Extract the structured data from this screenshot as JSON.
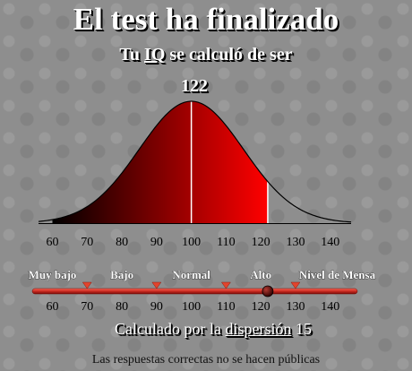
{
  "header": {
    "title": "El test ha finalizado",
    "subtitle_prefix": "Tu ",
    "subtitle_iq": "IQ",
    "subtitle_suffix": " se calculó de ser"
  },
  "result": {
    "score": "122",
    "iq_value": 122
  },
  "chart_data": {
    "type": "area",
    "distribution": "normal",
    "mean": 100,
    "sd": 15,
    "xlim": [
      56,
      146
    ],
    "x_ticks": [
      "60",
      "70",
      "80",
      "90",
      "100",
      "110",
      "120",
      "130",
      "140"
    ],
    "highlight_range": [
      60,
      122
    ],
    "marker_line_x": 100,
    "colors": {
      "fill_start": "#000000",
      "fill_end": "#ff0000",
      "line": "#000000",
      "marker": "#ffffff"
    }
  },
  "scale": {
    "categories": [
      {
        "label": "Muy bajo",
        "center": 60
      },
      {
        "label": "Bajo",
        "center": 80
      },
      {
        "label": "Normal",
        "center": 100
      },
      {
        "label": "Alto",
        "center": 120
      },
      {
        "label": "Nivel de Mensa",
        "center": 142
      }
    ],
    "markers": [
      70,
      90,
      110,
      130
    ],
    "ticks": [
      "60",
      "70",
      "80",
      "90",
      "100",
      "110",
      "120",
      "130",
      "140"
    ],
    "pointer_value": 122,
    "colors": {
      "bar": "#c8281f",
      "marker": "#e2442d",
      "pointer": "#5a0000"
    }
  },
  "footer": {
    "method_prefix": "Calculado por la ",
    "method_link": "dispersión",
    "method_suffix": " 15",
    "note": "Las respuestas correctas no se hacen públicas"
  }
}
